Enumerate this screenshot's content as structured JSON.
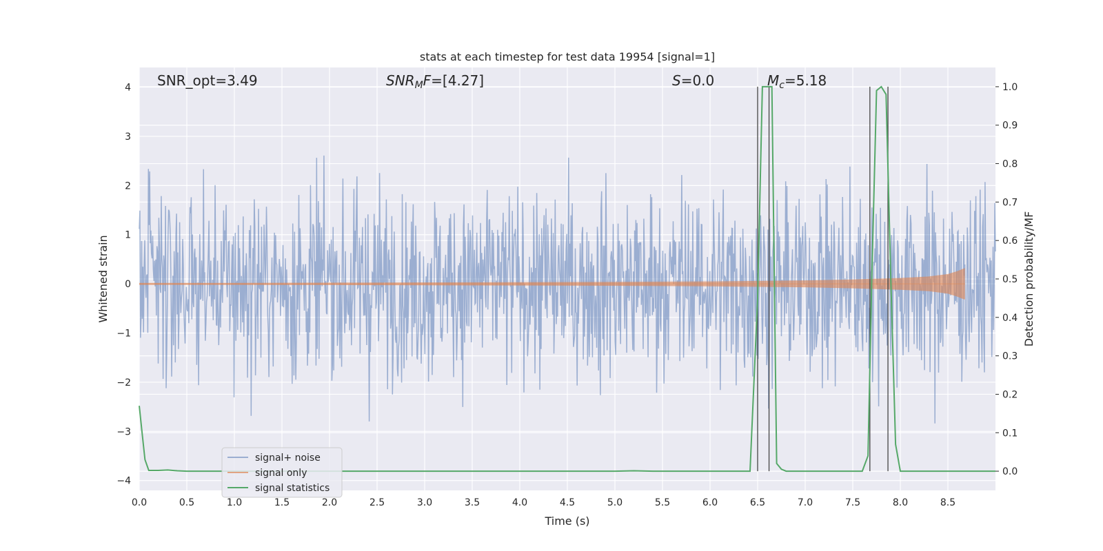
{
  "chart_data": {
    "type": "line",
    "title": "stats at each timestep for test data 19954 [signal=1]",
    "xlabel": "Time (s)",
    "ylabel_left": "Whitened strain",
    "ylabel_right": "Detection probability/MF",
    "xlim": [
      0.0,
      9.0
    ],
    "ylim_left": [
      -4.2,
      4.4
    ],
    "ylim_right": [
      -0.05,
      1.05
    ],
    "x_ticks": [
      "0.0",
      "0.5",
      "1.0",
      "1.5",
      "2.0",
      "2.5",
      "3.0",
      "3.5",
      "4.0",
      "4.5",
      "5.0",
      "5.5",
      "6.0",
      "6.5",
      "7.0",
      "7.5",
      "8.0",
      "8.5"
    ],
    "y_left_ticks": [
      "4",
      "3",
      "2",
      "1",
      "0",
      "−1",
      "−2",
      "−3",
      "−4"
    ],
    "y_right_ticks": [
      "1.0",
      "0.9",
      "0.8",
      "0.7",
      "0.6",
      "0.5",
      "0.4",
      "0.3",
      "0.2",
      "0.1",
      "0.0"
    ],
    "grid": true,
    "legend_position": "lower-left",
    "annotations": {
      "snr_opt": "SNR_opt=3.49",
      "snr_mf_main": "SNR",
      "snr_mf_sub": "M",
      "snr_mf_rest": "F",
      "snr_mf_value": "=[4.27]",
      "s_label": "S",
      "s_value": "=0.0",
      "mc_label": "M",
      "mc_sub": "c",
      "mc_value": "=5.18"
    },
    "series": [
      {
        "name": "signal+ noise",
        "color": "#4c72b0",
        "noise_std": 0.95,
        "range": [
          0.0,
          9.0
        ]
      },
      {
        "name": "signal only",
        "color": "#dd8452",
        "envelope": {
          "t": [
            0.0,
            1.0,
            2.0,
            3.0,
            4.0,
            5.0,
            6.0,
            7.0,
            7.5,
            8.0,
            8.3,
            8.5,
            8.6,
            8.65,
            8.68
          ],
          "amp": [
            0.02,
            0.02,
            0.025,
            0.03,
            0.035,
            0.04,
            0.05,
            0.07,
            0.09,
            0.12,
            0.15,
            0.2,
            0.26,
            0.3,
            0.32
          ]
        }
      },
      {
        "name": "signal statistics",
        "color": "#55a868",
        "x": [
          0.0,
          0.03,
          0.06,
          0.1,
          0.2,
          0.3,
          0.4,
          0.5,
          0.6,
          1.0,
          2.0,
          3.0,
          4.0,
          5.0,
          5.2,
          5.4,
          6.0,
          6.42,
          6.5,
          6.55,
          6.6,
          6.65,
          6.7,
          6.75,
          6.8,
          7.0,
          7.3,
          7.6,
          7.66,
          7.7,
          7.75,
          7.8,
          7.85,
          7.9,
          7.95,
          8.0,
          8.5,
          9.0
        ],
        "y": [
          0.17,
          0.1,
          0.03,
          0.002,
          0.002,
          0.003,
          0.001,
          0.0,
          0.0,
          0.0,
          0.0,
          0.0,
          0.0,
          0.0,
          0.001,
          0.0,
          0.0,
          0.0,
          0.45,
          1.0,
          1.0,
          1.0,
          0.02,
          0.005,
          0.0,
          0.0,
          0.0,
          0.0,
          0.04,
          0.5,
          0.99,
          1.0,
          0.98,
          0.5,
          0.07,
          0.0,
          0.0,
          0.0
        ]
      }
    ],
    "vertical_lines": [
      6.5,
      6.62,
      7.68,
      7.87
    ]
  }
}
